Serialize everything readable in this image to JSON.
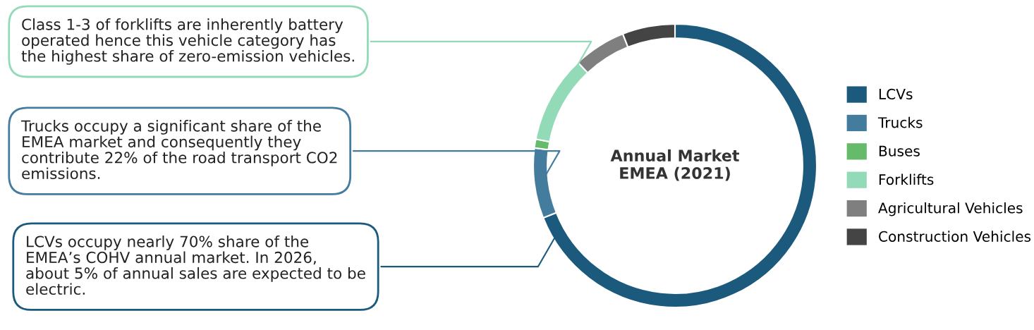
{
  "chart_data": {
    "type": "donut",
    "title": "Annual Market\nEMEA (2021)",
    "categories": [
      "LCVs",
      "Trucks",
      "Buses",
      "Forklifts",
      "Agricultural Vehicles",
      "Construction Vehicles"
    ],
    "values": [
      69,
      8,
      1,
      10,
      6,
      6
    ],
    "colors": [
      "#1c5a7d",
      "#437c9c",
      "#66bb6a",
      "#93dbb8",
      "#7f7f7f",
      "#444444"
    ],
    "legend": "right",
    "annotations": [
      "Class 1-3 of forklifts are inherently battery\noperated hence this vehicle category has\nthe highest share of zero-emission vehicles.",
      "Trucks occupy a significant share of the\nEMEA market and consequently they\ncontribute 22% of the road transport CO2\nemissions.",
      "LCVs occupy nearly 70% share of the\nEMEA’s COHV annual market. In 2026,\nabout 5% of annual sales are expected to be\nelectric."
    ]
  }
}
